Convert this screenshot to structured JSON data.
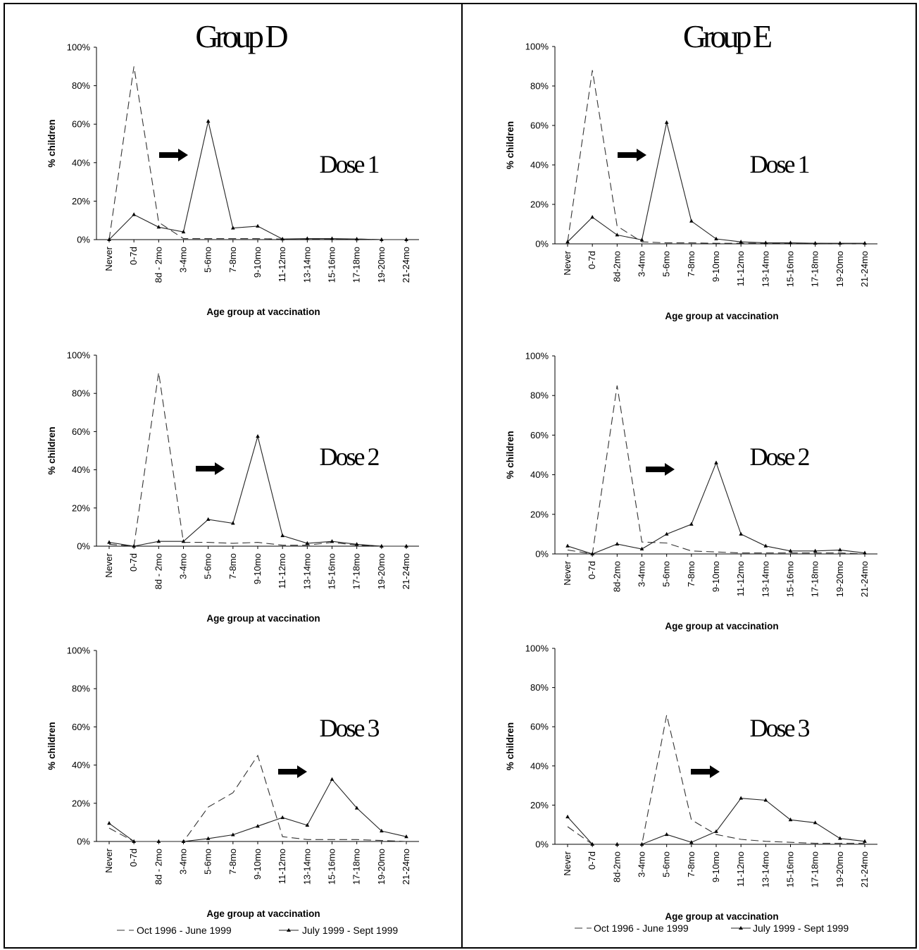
{
  "figure": {
    "groups": [
      {
        "title": "Group D"
      },
      {
        "title": "Group E"
      }
    ],
    "legend": {
      "series1": "Oct 1996 - June 1999",
      "series2": "July 1999 - Sept 1999"
    }
  },
  "chart_data": [
    {
      "type": "line",
      "title": "Group D",
      "panel_label": "Dose 1",
      "xlabel": "Age group at vaccination",
      "ylabel": "% children",
      "ylim": [
        0,
        100
      ],
      "yticks": [
        "0%",
        "20%",
        "40%",
        "60%",
        "80%",
        "100%"
      ],
      "categories": [
        "Never",
        "0-7d",
        "8d - 2mo",
        "3-4mo",
        "5-6mo",
        "7-8mo",
        "9-10mo",
        "11-12mo",
        "13-14mo",
        "15-16mo",
        "17-18mo",
        "19-20mo",
        "21-24mo"
      ],
      "series": [
        {
          "name": "Oct 1996 - June 1999",
          "style": "dashed",
          "values": [
            0,
            90,
            9,
            0.5,
            0.5,
            0.5,
            0.5,
            0.3,
            0.3,
            0.3,
            0.3,
            0,
            0
          ]
        },
        {
          "name": "July 1999 - Sept 1999",
          "style": "solid",
          "values": [
            0,
            13,
            6.5,
            4,
            61.5,
            6,
            7,
            0.3,
            0.5,
            0.5,
            0.3,
            0,
            0
          ]
        }
      ],
      "grid": false,
      "legend": "bottom"
    },
    {
      "type": "line",
      "title": "Group D",
      "panel_label": "Dose 2",
      "xlabel": "Age group at vaccination",
      "ylabel": "% children",
      "ylim": [
        0,
        100
      ],
      "yticks": [
        "0%",
        "20%",
        "40%",
        "60%",
        "80%",
        "100%"
      ],
      "categories": [
        "Never",
        "0-7d",
        "8d - 2mo",
        "3-4mo",
        "5-6mo",
        "7-8mo",
        "9-10mo",
        "11-12mo",
        "13-14mo",
        "15-16mo",
        "17-18mo",
        "19-20mo",
        "21-24mo"
      ],
      "series": [
        {
          "name": "Oct 1996 - June 1999",
          "style": "dashed",
          "values": [
            1,
            0,
            91,
            2,
            2,
            1.5,
            2,
            0.5,
            0.5,
            2,
            0.5,
            0,
            0
          ]
        },
        {
          "name": "July 1999 - Sept 1999",
          "style": "solid",
          "values": [
            2,
            0,
            2.5,
            2.5,
            14,
            12,
            57.5,
            5.5,
            1.5,
            2.5,
            1,
            0,
            0
          ]
        }
      ],
      "grid": false,
      "legend": "bottom"
    },
    {
      "type": "line",
      "title": "Group D",
      "panel_label": "Dose 3",
      "xlabel": "Age group at vaccination",
      "ylabel": "% children",
      "ylim": [
        0,
        100
      ],
      "yticks": [
        "0%",
        "20%",
        "40%",
        "60%",
        "80%",
        "100%"
      ],
      "categories": [
        "Never",
        "0-7d",
        "8d - 2mo",
        "3-4mo",
        "5-6mo",
        "7-8mo",
        "9-10mo",
        "11-12mo",
        "13-14mo",
        "15-16mo",
        "17-18mo",
        "19-20mo",
        "21-24mo"
      ],
      "series": [
        {
          "name": "Oct 1996 - June 1999",
          "style": "dashed",
          "values": [
            7,
            0,
            0,
            0,
            18,
            25.5,
            45,
            2.5,
            1,
            1,
            1,
            0.5,
            0
          ]
        },
        {
          "name": "July 1999 - Sept 1999",
          "style": "solid",
          "values": [
            9.5,
            0,
            0,
            0,
            1.5,
            3.5,
            8,
            12.5,
            8.5,
            32.5,
            17.5,
            5.5,
            2.5
          ]
        }
      ],
      "grid": false,
      "legend": "bottom"
    },
    {
      "type": "line",
      "title": "Group E",
      "panel_label": "Dose 1",
      "xlabel": "Age group at vaccination",
      "ylabel": "% children",
      "ylim": [
        0,
        100
      ],
      "yticks": [
        "0%",
        "20%",
        "40%",
        "60%",
        "80%",
        "100%"
      ],
      "categories": [
        "Never",
        "0-7d",
        "8d-2mo",
        "3-4mo",
        "5-6mo",
        "7-8mo",
        "9-10mo",
        "11-12mo",
        "13-14mo",
        "15-16mo",
        "17-18mo",
        "19-20mo",
        "21-24mo"
      ],
      "series": [
        {
          "name": "Oct 1996 - June 1999",
          "style": "dashed",
          "values": [
            1,
            88,
            9,
            1,
            0.5,
            0.5,
            0.3,
            0.3,
            0.3,
            0.3,
            0.3,
            0,
            0
          ]
        },
        {
          "name": "July 1999 - Sept 1999",
          "style": "solid",
          "values": [
            1,
            13.5,
            4.5,
            2,
            61.5,
            11.5,
            2.5,
            1,
            0.5,
            0.5,
            0.3,
            0.3,
            0.3
          ]
        }
      ],
      "grid": false,
      "legend": "bottom"
    },
    {
      "type": "line",
      "title": "Group E",
      "panel_label": "Dose 2",
      "xlabel": "Age group at vaccination",
      "ylabel": "% children",
      "ylim": [
        0,
        100
      ],
      "yticks": [
        "0%",
        "20%",
        "40%",
        "60%",
        "80%",
        "100%"
      ],
      "categories": [
        "Never",
        "0-7d",
        "8d-2mo",
        "3-4mo",
        "5-6mo",
        "7-8mo",
        "9-10mo",
        "11-12mo",
        "13-14mo",
        "15-16mo",
        "17-18mo",
        "19-20mo",
        "21-24mo"
      ],
      "series": [
        {
          "name": "Oct 1996 - June 1999",
          "style": "dashed",
          "values": [
            2,
            0,
            85,
            6,
            5.5,
            1.5,
            1,
            0.5,
            0.5,
            0.5,
            0.5,
            0.5,
            0
          ]
        },
        {
          "name": "July 1999 - Sept 1999",
          "style": "solid",
          "values": [
            4,
            0,
            5,
            2.5,
            10,
            15,
            46,
            10,
            4,
            1.5,
            1.5,
            2,
            0.5
          ]
        }
      ],
      "grid": false,
      "legend": "bottom"
    },
    {
      "type": "line",
      "title": "Group E",
      "panel_label": "Dose 3",
      "xlabel": "Age group at vaccination",
      "ylabel": "% children",
      "ylim": [
        0,
        100
      ],
      "yticks": [
        "0%",
        "20%",
        "40%",
        "60%",
        "80%",
        "100%"
      ],
      "categories": [
        "Never",
        "0-7d",
        "8d-2mo",
        "3-4mo",
        "5-6mo",
        "7-8mo",
        "9-10mo",
        "11-12mo",
        "13-14mo",
        "15-16mo",
        "17-18mo",
        "19-20mo",
        "21-24mo"
      ],
      "series": [
        {
          "name": "Oct 1996 - June 1999",
          "style": "dashed",
          "values": [
            9,
            0,
            0,
            0,
            66,
            12.5,
            5,
            2.5,
            1.5,
            1,
            0.5,
            0.5,
            0.5
          ]
        },
        {
          "name": "July 1999 - Sept 1999",
          "style": "solid",
          "values": [
            14,
            0,
            0,
            0,
            5,
            1,
            6.5,
            23.5,
            22.5,
            12.5,
            11,
            3,
            1.5
          ]
        }
      ],
      "grid": false,
      "legend": "bottom"
    }
  ]
}
